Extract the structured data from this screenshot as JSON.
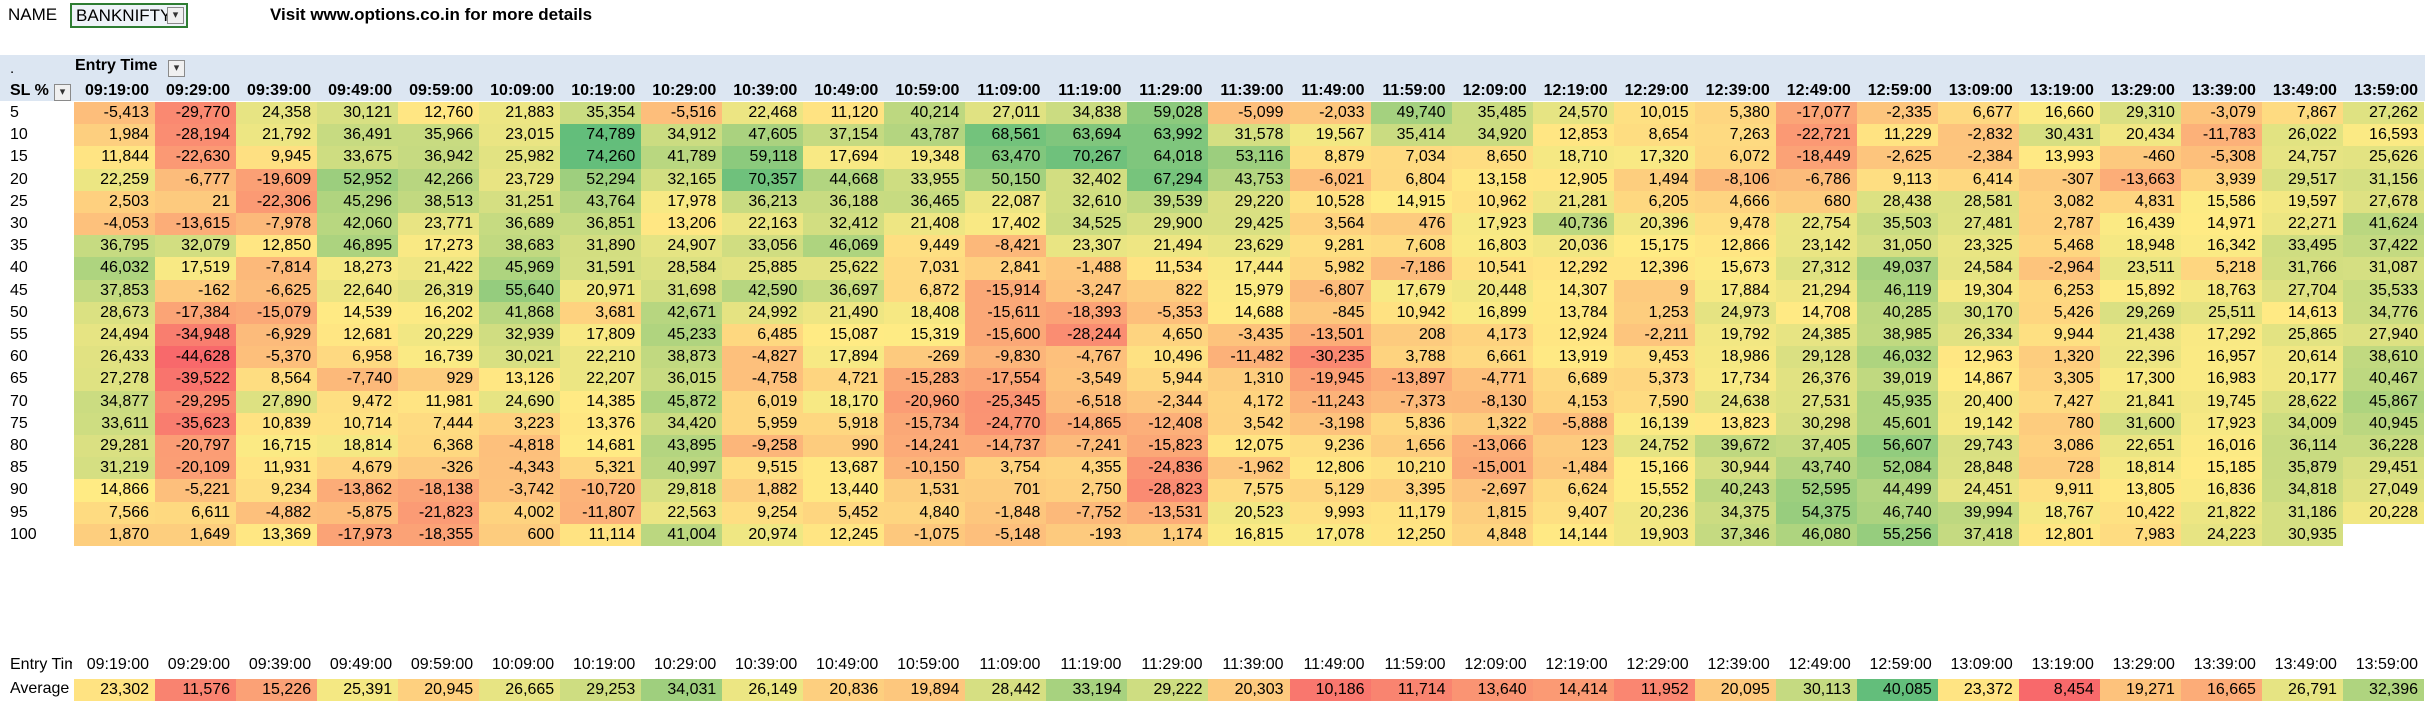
{
  "topbar": {
    "name_label": "NAME",
    "name_value": "BANKNIFTY",
    "note": "Visit www.options.co.in for more details"
  },
  "header": {
    "dot": ".",
    "entry_label": "Entry Time",
    "sl_label": "SL %",
    "times": [
      "09:19:00",
      "09:29:00",
      "09:39:00",
      "09:49:00",
      "09:59:00",
      "10:09:00",
      "10:19:00",
      "10:29:00",
      "10:39:00",
      "10:49:00",
      "10:59:00",
      "11:09:00",
      "11:19:00",
      "11:29:00",
      "11:39:00",
      "11:49:00",
      "11:59:00",
      "12:09:00",
      "12:19:00",
      "12:29:00",
      "12:39:00",
      "12:49:00",
      "12:59:00",
      "13:09:00",
      "13:19:00",
      "13:29:00",
      "13:39:00",
      "13:49:00",
      "13:59:00"
    ]
  },
  "rows": [
    {
      "sl": "5",
      "values": [
        -5413,
        -29770,
        24358,
        30121,
        12760,
        21883,
        35354,
        -5516,
        22468,
        11120,
        40214,
        27011,
        34838,
        59028,
        -5099,
        -2033,
        49740,
        35485,
        24570,
        10015,
        5380,
        -17077,
        -2335,
        6677,
        16660,
        29310,
        -3079,
        7867,
        27262
      ]
    },
    {
      "sl": "10",
      "values": [
        1984,
        -28194,
        21792,
        36491,
        35966,
        23015,
        74789,
        34912,
        47605,
        37154,
        43787,
        68561,
        63694,
        63992,
        31578,
        19567,
        35414,
        34920,
        12853,
        8654,
        7263,
        -22721,
        11229,
        -2832,
        30431,
        20434,
        -11783,
        26022,
        16593
      ]
    },
    {
      "sl": "15",
      "values": [
        11844,
        -22630,
        9945,
        33675,
        36942,
        25982,
        74260,
        41789,
        59118,
        17694,
        19348,
        63470,
        70267,
        64018,
        53116,
        8879,
        7034,
        8650,
        18710,
        17320,
        6072,
        -18449,
        -2625,
        -2384,
        13993,
        -460,
        -5308,
        24757,
        25626
      ]
    },
    {
      "sl": "20",
      "values": [
        22259,
        -6777,
        -19609,
        52952,
        42266,
        23729,
        52294,
        32165,
        70357,
        44668,
        33955,
        50150,
        32402,
        67294,
        43753,
        -6021,
        6804,
        13158,
        12905,
        1494,
        -8106,
        -6786,
        9113,
        6414,
        -307,
        -13663,
        3939,
        29517,
        31156
      ]
    },
    {
      "sl": "25",
      "values": [
        2503,
        21,
        -22306,
        45296,
        38513,
        31251,
        43764,
        17978,
        36213,
        36188,
        36465,
        22087,
        32610,
        39539,
        29220,
        10528,
        14915,
        10962,
        21281,
        6205,
        4666,
        680,
        28438,
        28581,
        3082,
        4831,
        15586,
        19597,
        27678
      ]
    },
    {
      "sl": "30",
      "values": [
        -4053,
        -13615,
        -7978,
        42060,
        23771,
        36689,
        36851,
        13206,
        22163,
        32412,
        21408,
        17402,
        34525,
        29900,
        29425,
        3564,
        476,
        17923,
        40736,
        20396,
        9478,
        22754,
        35503,
        27481,
        2787,
        16439,
        14971,
        22271,
        41624
      ]
    },
    {
      "sl": "35",
      "values": [
        36795,
        32079,
        12850,
        46895,
        17273,
        38683,
        31890,
        24907,
        33056,
        46069,
        9449,
        -8421,
        23307,
        21494,
        23629,
        9281,
        7608,
        16803,
        20036,
        15175,
        12866,
        23142,
        31050,
        23325,
        5468,
        18948,
        16342,
        33495,
        37422
      ]
    },
    {
      "sl": "40",
      "values": [
        46032,
        17519,
        -7814,
        18273,
        21422,
        45969,
        31591,
        28584,
        25885,
        25622,
        7031,
        2841,
        -1488,
        11534,
        17444,
        5982,
        -7186,
        10541,
        12292,
        12396,
        15673,
        27312,
        49037,
        24584,
        -2964,
        23511,
        5218,
        31766,
        31087
      ]
    },
    {
      "sl": "45",
      "values": [
        37853,
        -162,
        -6625,
        22640,
        26319,
        55640,
        20971,
        31698,
        42590,
        36697,
        6872,
        -15914,
        -3247,
        822,
        15979,
        -6807,
        17679,
        20448,
        14307,
        9,
        17884,
        21294,
        46119,
        19304,
        6253,
        15892,
        18763,
        27704,
        35533
      ]
    },
    {
      "sl": "50",
      "values": [
        28673,
        -17384,
        -15079,
        14539,
        16202,
        41868,
        3681,
        42671,
        24992,
        21490,
        18408,
        -15611,
        -18393,
        -5353,
        14688,
        -845,
        10942,
        16899,
        13784,
        1253,
        24973,
        14708,
        40285,
        30170,
        5426,
        29269,
        25511,
        14613,
        34776
      ]
    },
    {
      "sl": "55",
      "values": [
        24494,
        -34948,
        -6929,
        12681,
        20229,
        32939,
        17809,
        45233,
        6485,
        15087,
        15319,
        -15600,
        -28244,
        4650,
        -3435,
        -13501,
        208,
        4173,
        12924,
        -2211,
        19792,
        24385,
        38985,
        26334,
        9944,
        21438,
        17292,
        25865,
        27940
      ]
    },
    {
      "sl": "60",
      "values": [
        26433,
        -44628,
        -5370,
        6958,
        16739,
        30021,
        22210,
        38873,
        -4827,
        17894,
        -269,
        -9830,
        -4767,
        10496,
        -11482,
        -30235,
        3788,
        6661,
        13919,
        9453,
        18986,
        29128,
        46032,
        12963,
        1320,
        22396,
        16957,
        20614,
        38610
      ]
    },
    {
      "sl": "65",
      "values": [
        27278,
        -39522,
        8564,
        -7740,
        929,
        13126,
        22207,
        36015,
        -4758,
        4721,
        -15283,
        -17554,
        -3549,
        5944,
        1310,
        -19945,
        -13897,
        -4771,
        6689,
        5373,
        17734,
        26376,
        39019,
        14867,
        3305,
        17300,
        16983,
        20177,
        40467
      ]
    },
    {
      "sl": "70",
      "values": [
        34877,
        -29295,
        27890,
        9472,
        11981,
        24690,
        14385,
        45872,
        6019,
        18170,
        -20960,
        -25345,
        -6518,
        -2344,
        4172,
        -11243,
        -7373,
        -8130,
        4153,
        7590,
        24638,
        27531,
        45935,
        20400,
        7427,
        21841,
        19745,
        28622,
        45867
      ]
    },
    {
      "sl": "75",
      "values": [
        33611,
        -35623,
        10839,
        10714,
        7444,
        3223,
        13376,
        34420,
        5959,
        5918,
        -15734,
        -24770,
        -14865,
        -12408,
        3542,
        -3198,
        5836,
        1322,
        -5888,
        16139,
        13823,
        30298,
        45601,
        19142,
        780,
        31600,
        17923,
        34009,
        40945
      ]
    },
    {
      "sl": "80",
      "values": [
        29281,
        -20797,
        16715,
        18814,
        6368,
        -4818,
        14681,
        43895,
        -9258,
        990,
        -14241,
        -14737,
        -7241,
        -15823,
        12075,
        9236,
        1656,
        -13066,
        123,
        24752,
        39672,
        37405,
        56607,
        29743,
        3086,
        22651,
        16016,
        36114,
        36228
      ]
    },
    {
      "sl": "85",
      "values": [
        31219,
        -20109,
        11931,
        4679,
        -326,
        -4343,
        5321,
        40997,
        9515,
        13687,
        -10150,
        3754,
        4355,
        -24836,
        -1962,
        12806,
        10210,
        -15001,
        -1484,
        15166,
        30944,
        43740,
        52084,
        28848,
        728,
        18814,
        15185,
        35879,
        29451
      ]
    },
    {
      "sl": "90",
      "values": [
        14866,
        -5221,
        9234,
        -13862,
        -18138,
        -3742,
        -10720,
        29818,
        1882,
        13440,
        1531,
        701,
        2750,
        -28823,
        7575,
        5129,
        3395,
        -2697,
        6624,
        15552,
        40243,
        52595,
        44499,
        24451,
        9911,
        13805,
        16836,
        34818,
        27049
      ]
    },
    {
      "sl": "95",
      "values": [
        7566,
        6611,
        -4882,
        -5875,
        -21823,
        4002,
        -11807,
        22563,
        9254,
        5452,
        4840,
        -1848,
        -7752,
        -13531,
        20523,
        9993,
        11179,
        1815,
        9407,
        20236,
        34375,
        54375,
        46740,
        39994,
        18767,
        10422,
        21822,
        31186,
        20228
      ]
    },
    {
      "sl": "100",
      "values": [
        1870,
        1649,
        13369,
        -17973,
        -18355,
        600,
        11114,
        41004,
        20974,
        12245,
        -1075,
        -5148,
        -193,
        1174,
        16815,
        17078,
        12250,
        4848,
        14144,
        19903,
        37346,
        46080,
        55256,
        37418,
        12801,
        7983,
        24223,
        30935,
        null
      ]
    }
  ],
  "bottom": {
    "entry_label": "Entry Time",
    "average_label": "Average",
    "averages": [
      23302,
      11576,
      15226,
      25391,
      20945,
      26665,
      29253,
      34031,
      26149,
      20836,
      19894,
      28442,
      33194,
      29222,
      20303,
      10186,
      11714,
      13640,
      14414,
      11952,
      20095,
      30113,
      40085,
      23372,
      8454,
      19271,
      16665,
      26791,
      32396
    ]
  },
  "colors": {
    "negative": "#f8696b",
    "neutral": "#ffeb84",
    "positive": "#63be7b",
    "header_band": "#dce6f2",
    "selected_border": "#2e7d32"
  }
}
